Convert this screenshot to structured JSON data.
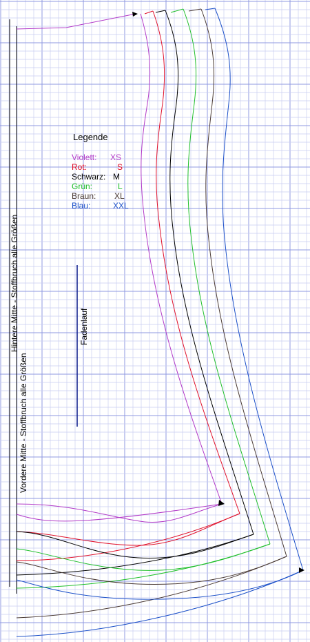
{
  "legend": {
    "title": "Legende",
    "items": [
      {
        "name": "Violett:",
        "size": "XS",
        "color": "#b23ac8"
      },
      {
        "name": "Rot:",
        "size": "S",
        "color": "#e0102a"
      },
      {
        "name": "Schwarz:",
        "size": "M",
        "color": "#000000"
      },
      {
        "name": "Grün:",
        "size": "L",
        "color": "#1fbf2a"
      },
      {
        "name": "Braun:",
        "size": "XL",
        "color": "#4a3a34"
      },
      {
        "name": "Blau:",
        "size": "XXL",
        "color": "#1a4fc8"
      }
    ]
  },
  "labels": {
    "back_center": "Hintere Mitte - Stoffbruch alle Größen",
    "front_center": "Vordere Mitte - Stoffbruch alle Größen",
    "grainline": "Fadenlauf"
  },
  "colors": {
    "grid_fine": "#c9cdf0",
    "grid_major": "#8f99e0",
    "grainline": "#0a1a8a"
  }
}
